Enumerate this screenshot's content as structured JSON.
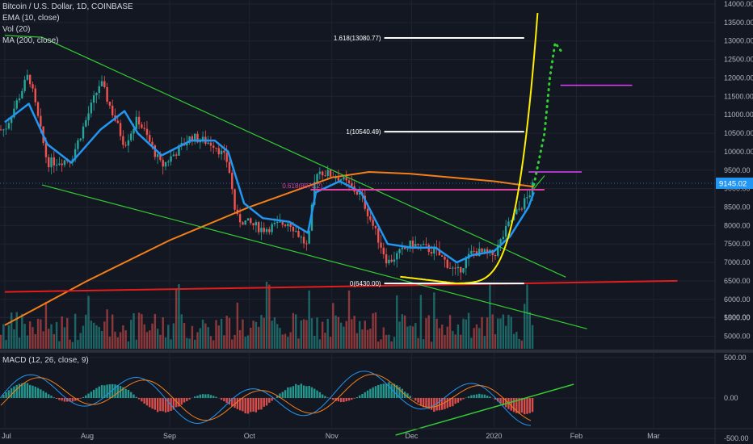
{
  "header": {
    "symbol": "Bitcoin / U.S. Dollar, 1D, COINBASE",
    "ema": "EMA (10, close)",
    "vol": "Vol (20)",
    "ma": "MA (200, close)",
    "macd": "MACD (12, 26, close, 9)"
  },
  "colors": {
    "background": "#131722",
    "up": "#26a69a",
    "down": "#ef5350",
    "ema": "#2196f3",
    "ma200": "#f57f17",
    "trend_green": "#32cd32",
    "support_red": "#e51c1c",
    "parabola": "#ffee00",
    "magenta": "#e040fb",
    "fib_white": "#ffffff",
    "price_badge": "#2196f3"
  },
  "price_badge": "9145.02",
  "chart_data": [
    {
      "type": "candlestick",
      "title": "Bitcoin / U.S. Dollar, 1D, COINBASE",
      "x_tick_labels": [
        "Jul",
        "Aug",
        "Sep",
        "Oct",
        "Nov",
        "Dec",
        "2020",
        "Feb",
        "Mar"
      ],
      "y_tick_labels": [
        "14000.00",
        "13500.00",
        "13000.00",
        "12500.00",
        "12000.00",
        "11500.00",
        "11000.00",
        "10500.00",
        "10000.00",
        "9500.00",
        "9000.00",
        "8500.00",
        "8000.00",
        "7500.00",
        "7000.00",
        "6500.00",
        "6000.00",
        "5500.00",
        "5000.00"
      ],
      "ylim": [
        4650,
        14100
      ],
      "last_price": 9145.02,
      "close_series": {
        "dates": [
          "2019-07-01",
          "2019-07-10",
          "2019-07-17",
          "2019-07-26",
          "2019-08-06",
          "2019-08-15",
          "2019-08-20",
          "2019-08-29",
          "2019-09-09",
          "2019-09-18",
          "2019-09-23",
          "2019-09-26",
          "2019-10-06",
          "2019-10-16",
          "2019-10-23",
          "2019-10-26",
          "2019-11-04",
          "2019-11-12",
          "2019-11-22",
          "2019-12-01",
          "2019-12-10",
          "2019-12-18",
          "2019-12-24",
          "2020-01-01",
          "2020-01-07",
          "2020-01-14",
          "2020-01-16"
        ],
        "close": [
          10600,
          12100,
          9700,
          9800,
          11900,
          10200,
          10900,
          9600,
          10400,
          10200,
          9700,
          8200,
          7900,
          8100,
          7400,
          9500,
          9300,
          8800,
          7000,
          7500,
          7300,
          6700,
          7300,
          7200,
          8100,
          8800,
          9145
        ]
      },
      "ema10": {
        "dates": [
          "2019-07-01",
          "2019-07-10",
          "2019-07-17",
          "2019-07-26",
          "2019-08-06",
          "2019-08-15",
          "2019-08-20",
          "2019-08-29",
          "2019-09-09",
          "2019-09-18",
          "2019-09-23",
          "2019-09-29",
          "2019-10-06",
          "2019-10-16",
          "2019-10-23",
          "2019-10-26",
          "2019-11-04",
          "2019-11-12",
          "2019-11-22",
          "2019-12-01",
          "2019-12-10",
          "2019-12-18",
          "2019-12-24",
          "2020-01-01",
          "2020-01-07",
          "2020-01-14",
          "2020-01-16"
        ],
        "values": [
          10800,
          11300,
          10200,
          9700,
          10600,
          11100,
          10500,
          9900,
          10300,
          10300,
          10000,
          8600,
          8200,
          8100,
          7800,
          8900,
          9200,
          8900,
          7500,
          7400,
          7400,
          7000,
          7200,
          7300,
          7700,
          8500,
          8900
        ]
      },
      "ma200": {
        "dates": [
          "2019-07-01",
          "2019-08-01",
          "2019-09-01",
          "2019-10-01",
          "2019-11-01",
          "2019-11-15",
          "2019-12-01",
          "2020-01-01",
          "2020-01-16"
        ],
        "values": [
          5300,
          6500,
          7600,
          8500,
          9300,
          9450,
          9400,
          9200,
          9050
        ]
      },
      "volume_note": "Volume bars along the bottom of the price pane",
      "annotations": {
        "fibonacci": [
          {
            "label": "1.618(13080.77)",
            "price": 13080.77
          },
          {
            "label": "1(10540.49)",
            "price": 10540.49
          },
          {
            "label": "0.618(8970.2)",
            "price": 8970.2
          },
          {
            "label": "0(6430.00)",
            "price": 6430.0
          }
        ],
        "magenta_levels": [
          11800,
          9450
        ],
        "red_support": {
          "from": [
            "2019-07-01",
            6200
          ],
          "to": [
            "2020-03-10",
            6500
          ]
        },
        "green_channel_upper": {
          "from": [
            "2019-07-15",
            13100
          ],
          "to": [
            "2020-01-28",
            6600
          ]
        },
        "green_channel_lower": {
          "from": [
            "2019-07-15",
            9100
          ],
          "to": [
            "2020-02-05",
            5200
          ]
        }
      }
    },
    {
      "type": "macd",
      "title": "MACD (12, 26, close, 9)",
      "y_tick_labels": [
        "1000.00",
        "500.00",
        "0.00",
        "-500.00"
      ],
      "ylim": [
        -650,
        1100
      ]
    }
  ]
}
